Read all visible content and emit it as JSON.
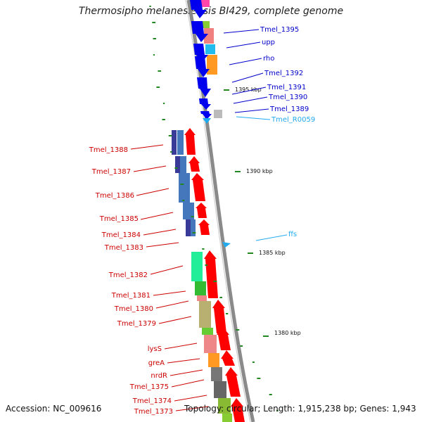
{
  "title": "Thermosipho melanesiensis BI429, complete genome",
  "footer": {
    "accession": "Accession: NC_009616",
    "topology": "Topology: circular; Length: 1,915,238 bp; Genes: 1,943"
  },
  "colors": {
    "forward_label": "#0000cc",
    "reverse_label": "#cc0000",
    "rna_label": "#22aaee",
    "forward_gene": "#0000ee",
    "reverse_gene": "#ff0000",
    "backbone": "#888888",
    "gc_tick": "#228822"
  },
  "kbp_marks": [
    "1395 kbp",
    "1390 kbp",
    "1385 kbp",
    "1380 kbp"
  ],
  "forward_labels": [
    "Tmel_1395",
    "upp",
    "rho",
    "Tmel_1392",
    "Tmel_1391",
    "Tmel_1390",
    "Tmel_1389"
  ],
  "rna_labels": [
    "Tmel_R0059",
    "ffs"
  ],
  "reverse_labels": [
    "Tmel_1388",
    "Tmel_1387",
    "Tmel_1386",
    "Tmel_1385",
    "Tmel_1384",
    "Tmel_1383",
    "Tmel_1382",
    "Tmel_1381",
    "Tmel_1380",
    "Tmel_1379",
    "lysS",
    "greA",
    "nrdR",
    "Tmel_1375",
    "Tmel_1374",
    "Tmel_1373"
  ],
  "cog_track_note": ""
}
